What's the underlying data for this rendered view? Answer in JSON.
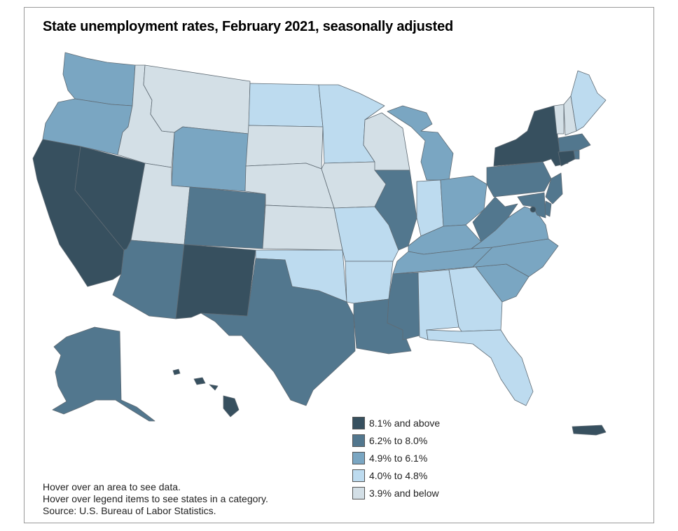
{
  "title": "State unemployment rates, February 2021, seasonally adjusted",
  "notes": {
    "line1": "Hover over an area to see data.",
    "line2": "Hover over legend items to see states in a category.",
    "line3": "Source: U.S. Bureau of Labor Statistics."
  },
  "colors": {
    "c1": "#37505f",
    "c2": "#52778e",
    "c3": "#7aa6c2",
    "c4": "#bddbef",
    "c5": "#d3dfe6"
  },
  "legend": [
    {
      "label": "8.1% and above",
      "category": "c1"
    },
    {
      "label": "6.2% to 8.0%",
      "category": "c2"
    },
    {
      "label": "4.9% to 6.1%",
      "category": "c3"
    },
    {
      "label": "4.0% to 4.8%",
      "category": "c4"
    },
    {
      "label": "3.9% and below",
      "category": "c5"
    }
  ],
  "states": {
    "WA": "c3",
    "OR": "c3",
    "CA": "c1",
    "NV": "c1",
    "ID": "c5",
    "MT": "c5",
    "WY": "c3",
    "UT": "c5",
    "CO": "c2",
    "AZ": "c2",
    "NM": "c1",
    "ND": "c4",
    "SD": "c5",
    "NE": "c5",
    "KS": "c5",
    "OK": "c4",
    "TX": "c2",
    "MN": "c4",
    "IA": "c5",
    "MO": "c4",
    "AR": "c4",
    "LA": "c2",
    "WI": "c5",
    "IL": "c2",
    "MS": "c2",
    "MI": "c3",
    "IN": "c4",
    "KY": "c3",
    "TN": "c3",
    "AL": "c4",
    "OH": "c3",
    "GA": "c4",
    "FL": "c4",
    "SC": "c3",
    "NC": "c3",
    "VA": "c3",
    "WV": "c2",
    "PA": "c2",
    "NY": "c1",
    "VT": "c5",
    "NH": "c5",
    "ME": "c4",
    "MA": "c2",
    "RI": "c2",
    "CT": "c1",
    "NJ": "c2",
    "DE": "c2",
    "MD": "c2",
    "DC": "c1",
    "AK": "c2",
    "HI": "c1",
    "PR": "c1"
  }
}
